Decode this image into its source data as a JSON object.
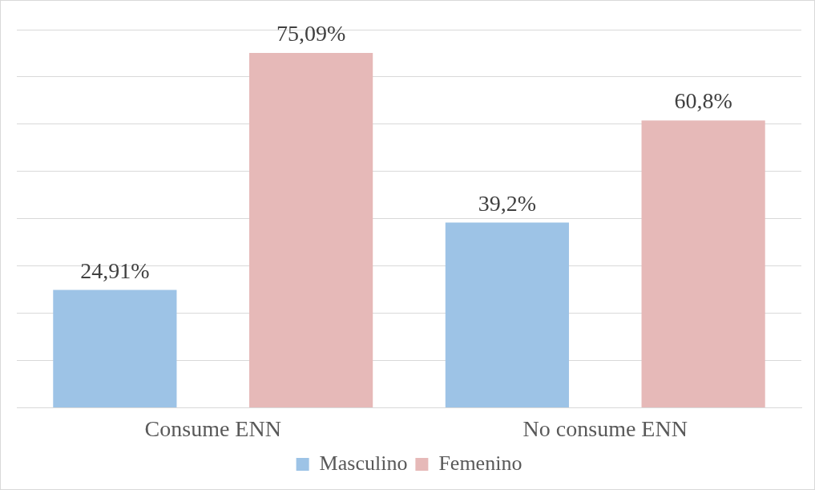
{
  "chart_data": {
    "type": "bar",
    "categories": [
      "Consume ENN",
      "No consume ENN"
    ],
    "series": [
      {
        "name": "Masculino",
        "color": "#9dc3e6",
        "values": [
          24.91,
          39.2
        ],
        "value_labels": [
          "24,91%",
          "39,2%"
        ]
      },
      {
        "name": "Femenino",
        "color": "#e6b9b8",
        "values": [
          75.09,
          60.8
        ],
        "value_labels": [
          "75,09%",
          "60,8%"
        ]
      }
    ],
    "ylim": [
      0,
      80
    ],
    "yticks": [
      {
        "value": 0,
        "label": null
      },
      {
        "value": 10,
        "label": null
      },
      {
        "value": 20,
        "label": null
      },
      {
        "value": 30,
        "label": null
      },
      {
        "value": 40,
        "label": null
      },
      {
        "value": 50,
        "label": null
      },
      {
        "value": 60,
        "label": null
      },
      {
        "value": 70,
        "label": null
      },
      {
        "value": 80,
        "label": null
      }
    ],
    "grid": "y",
    "legend": "bottom",
    "tick_labels": "x"
  }
}
